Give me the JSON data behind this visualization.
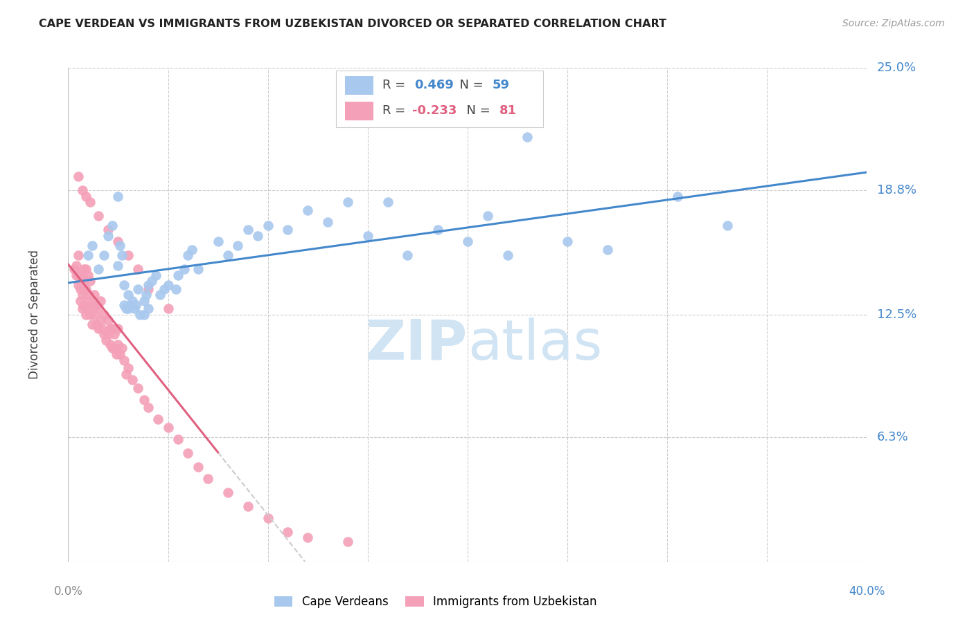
{
  "title": "CAPE VERDEAN VS IMMIGRANTS FROM UZBEKISTAN DIVORCED OR SEPARATED CORRELATION CHART",
  "source": "Source: ZipAtlas.com",
  "ylabel": "Divorced or Separated",
  "ytick_labels": [
    "25.0%",
    "18.8%",
    "12.5%",
    "6.3%"
  ],
  "ytick_values": [
    0.25,
    0.188,
    0.125,
    0.063
  ],
  "xlim": [
    0.0,
    0.4
  ],
  "ylim": [
    0.0,
    0.25
  ],
  "blue_r": 0.469,
  "blue_n": 59,
  "pink_r": -0.233,
  "pink_n": 81,
  "blue_color": "#A8C8EE",
  "pink_color": "#F4A0B8",
  "blue_line_color": "#4488CC",
  "pink_line_color": "#E06080",
  "pink_dash_color": "#CCCCCC",
  "watermark_color": "#D0E4F4",
  "background_color": "#ffffff",
  "grid_color": "#CCCCCC",
  "blue_x": [
    0.01,
    0.012,
    0.015,
    0.018,
    0.02,
    0.022,
    0.025,
    0.025,
    0.026,
    0.027,
    0.028,
    0.028,
    0.029,
    0.03,
    0.03,
    0.031,
    0.032,
    0.033,
    0.034,
    0.035,
    0.036,
    0.038,
    0.038,
    0.039,
    0.04,
    0.04,
    0.042,
    0.044,
    0.046,
    0.048,
    0.05,
    0.054,
    0.055,
    0.058,
    0.06,
    0.062,
    0.065,
    0.075,
    0.08,
    0.085,
    0.09,
    0.095,
    0.1,
    0.11,
    0.12,
    0.13,
    0.14,
    0.15,
    0.16,
    0.17,
    0.185,
    0.2,
    0.21,
    0.22,
    0.23,
    0.25,
    0.27,
    0.305,
    0.33
  ],
  "blue_y": [
    0.155,
    0.16,
    0.148,
    0.155,
    0.165,
    0.17,
    0.15,
    0.185,
    0.16,
    0.155,
    0.14,
    0.13,
    0.128,
    0.135,
    0.128,
    0.13,
    0.132,
    0.128,
    0.13,
    0.138,
    0.125,
    0.132,
    0.125,
    0.135,
    0.128,
    0.14,
    0.142,
    0.145,
    0.135,
    0.138,
    0.14,
    0.138,
    0.145,
    0.148,
    0.155,
    0.158,
    0.148,
    0.162,
    0.155,
    0.16,
    0.168,
    0.165,
    0.17,
    0.168,
    0.178,
    0.172,
    0.182,
    0.165,
    0.182,
    0.155,
    0.168,
    0.162,
    0.175,
    0.155,
    0.215,
    0.162,
    0.158,
    0.185,
    0.17
  ],
  "pink_x": [
    0.003,
    0.004,
    0.004,
    0.005,
    0.005,
    0.005,
    0.006,
    0.006,
    0.006,
    0.007,
    0.007,
    0.007,
    0.008,
    0.008,
    0.008,
    0.009,
    0.009,
    0.009,
    0.01,
    0.01,
    0.01,
    0.011,
    0.011,
    0.011,
    0.012,
    0.012,
    0.013,
    0.013,
    0.014,
    0.014,
    0.015,
    0.015,
    0.016,
    0.016,
    0.017,
    0.018,
    0.018,
    0.019,
    0.02,
    0.02,
    0.021,
    0.021,
    0.022,
    0.022,
    0.023,
    0.023,
    0.024,
    0.025,
    0.025,
    0.026,
    0.027,
    0.028,
    0.029,
    0.03,
    0.032,
    0.035,
    0.038,
    0.04,
    0.045,
    0.05,
    0.055,
    0.06,
    0.065,
    0.07,
    0.08,
    0.09,
    0.1,
    0.11,
    0.12,
    0.14,
    0.005,
    0.007,
    0.009,
    0.011,
    0.015,
    0.02,
    0.025,
    0.03,
    0.035,
    0.04,
    0.05
  ],
  "pink_y": [
    0.148,
    0.145,
    0.15,
    0.14,
    0.145,
    0.155,
    0.132,
    0.138,
    0.142,
    0.128,
    0.135,
    0.145,
    0.13,
    0.14,
    0.148,
    0.125,
    0.138,
    0.148,
    0.128,
    0.135,
    0.145,
    0.125,
    0.132,
    0.142,
    0.12,
    0.13,
    0.125,
    0.135,
    0.12,
    0.13,
    0.118,
    0.128,
    0.122,
    0.132,
    0.118,
    0.115,
    0.125,
    0.112,
    0.115,
    0.122,
    0.11,
    0.118,
    0.108,
    0.118,
    0.108,
    0.115,
    0.105,
    0.11,
    0.118,
    0.105,
    0.108,
    0.102,
    0.095,
    0.098,
    0.092,
    0.088,
    0.082,
    0.078,
    0.072,
    0.068,
    0.062,
    0.055,
    0.048,
    0.042,
    0.035,
    0.028,
    0.022,
    0.015,
    0.012,
    0.01,
    0.195,
    0.188,
    0.185,
    0.182,
    0.175,
    0.168,
    0.162,
    0.155,
    0.148,
    0.138,
    0.128
  ]
}
